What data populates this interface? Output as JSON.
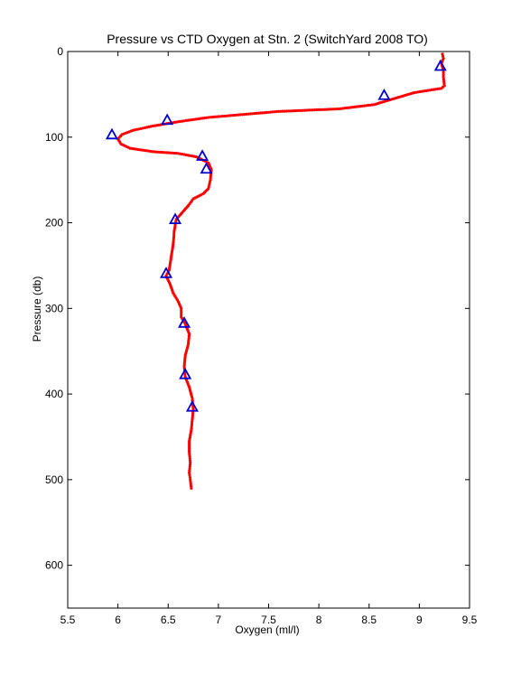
{
  "chart_data": {
    "type": "line",
    "title": "Pressure vs CTD Oxygen at Stn. 2 (SwitchYard 2008 TO)",
    "xlabel": "Oxygen (ml/l)",
    "ylabel": "Pressure (db)",
    "xlim": [
      5.5,
      9.5
    ],
    "ylim": [
      0,
      650
    ],
    "y_reversed": true,
    "grid": false,
    "x_ticks": [
      5.5,
      6,
      6.5,
      7,
      7.5,
      8,
      8.5,
      9,
      9.5
    ],
    "x_tick_labels": [
      "5.5",
      "6",
      "6.5",
      "7",
      "7.5",
      "8",
      "8.5",
      "9",
      "9.5"
    ],
    "y_ticks": [
      0,
      100,
      200,
      300,
      400,
      500,
      600
    ],
    "y_tick_labels": [
      "0",
      "100",
      "200",
      "300",
      "400",
      "500",
      "600"
    ],
    "colors": {
      "profile": "#ff0000",
      "bottle": "#0000cc",
      "axes": "#000000"
    },
    "series": [
      {
        "kind": "line-dots",
        "points": [
          [
            9.23,
            3
          ],
          [
            9.24,
            8
          ],
          [
            9.22,
            14
          ],
          [
            9.24,
            22
          ],
          [
            9.24,
            30
          ],
          [
            9.25,
            40
          ],
          [
            9.22,
            43
          ],
          [
            8.95,
            48
          ],
          [
            8.75,
            55
          ],
          [
            8.55,
            62
          ],
          [
            8.2,
            67
          ],
          [
            7.6,
            70
          ],
          [
            7.2,
            74
          ],
          [
            6.9,
            77
          ],
          [
            6.6,
            82
          ],
          [
            6.35,
            87
          ],
          [
            6.15,
            92
          ],
          [
            6.04,
            97
          ],
          [
            6.0,
            102
          ],
          [
            6.03,
            108
          ],
          [
            6.12,
            113
          ],
          [
            6.35,
            117
          ],
          [
            6.6,
            119
          ],
          [
            6.78,
            123
          ],
          [
            6.9,
            130
          ],
          [
            6.93,
            138
          ],
          [
            6.92,
            150
          ],
          [
            6.9,
            160
          ],
          [
            6.85,
            166
          ],
          [
            6.75,
            172
          ],
          [
            6.7,
            180
          ],
          [
            6.64,
            188
          ],
          [
            6.58,
            196
          ],
          [
            6.56,
            210
          ],
          [
            6.55,
            225
          ],
          [
            6.53,
            240
          ],
          [
            6.51,
            255
          ],
          [
            6.48,
            262
          ],
          [
            6.52,
            272
          ],
          [
            6.55,
            282
          ],
          [
            6.6,
            292
          ],
          [
            6.63,
            300
          ],
          [
            6.63,
            310
          ],
          [
            6.67,
            318
          ],
          [
            6.71,
            330
          ],
          [
            6.7,
            342
          ],
          [
            6.67,
            355
          ],
          [
            6.66,
            368
          ],
          [
            6.67,
            380
          ],
          [
            6.71,
            392
          ],
          [
            6.74,
            405
          ],
          [
            6.75,
            418
          ],
          [
            6.74,
            430
          ],
          [
            6.73,
            442
          ],
          [
            6.71,
            455
          ],
          [
            6.71,
            468
          ],
          [
            6.72,
            480
          ],
          [
            6.71,
            492
          ],
          [
            6.72,
            500
          ],
          [
            6.73,
            510
          ]
        ]
      },
      {
        "kind": "triangle-markers",
        "points": [
          [
            9.21,
            17
          ],
          [
            8.65,
            51
          ],
          [
            6.49,
            80
          ],
          [
            5.94,
            97
          ],
          [
            6.84,
            122
          ],
          [
            6.88,
            137
          ],
          [
            6.57,
            196
          ],
          [
            6.48,
            259
          ],
          [
            6.66,
            317
          ],
          [
            6.67,
            377
          ],
          [
            6.74,
            415
          ]
        ]
      }
    ]
  }
}
